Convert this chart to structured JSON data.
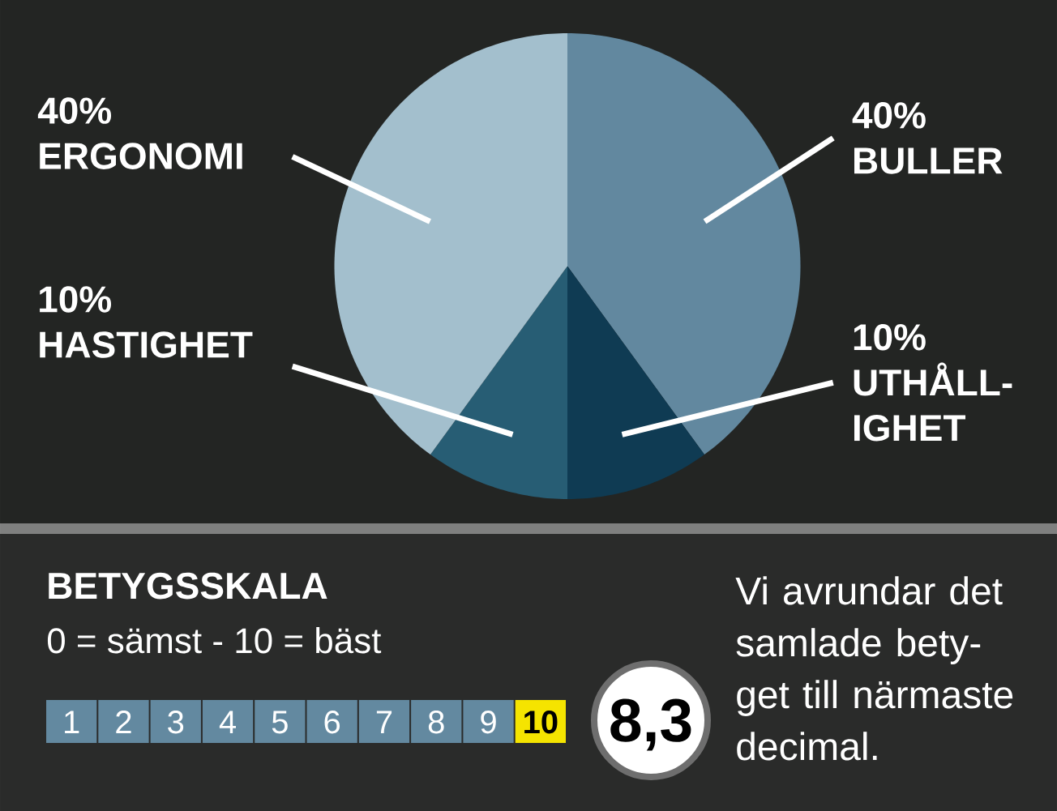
{
  "chart_data": {
    "type": "pie",
    "categories": [
      "BULLER",
      "UTHÅLL-IGHET",
      "HASTIGHET",
      "ERGONOMI"
    ],
    "values": [
      40,
      10,
      10,
      40
    ],
    "colors": [
      "#62889f",
      "#0f3b53",
      "#275d74",
      "#a3bfcd"
    ],
    "value_labels": [
      "40%",
      "10%",
      "10%",
      "40%"
    ],
    "annotations": [
      "BETYGSSKALA",
      "0 = sämst - 10 = bäst",
      "1",
      "2",
      "3",
      "4",
      "5",
      "6",
      "7",
      "8",
      "9",
      "10",
      "8,3",
      "Vi avrundar det samlade bety-get till närmaste decimal."
    ]
  }
}
